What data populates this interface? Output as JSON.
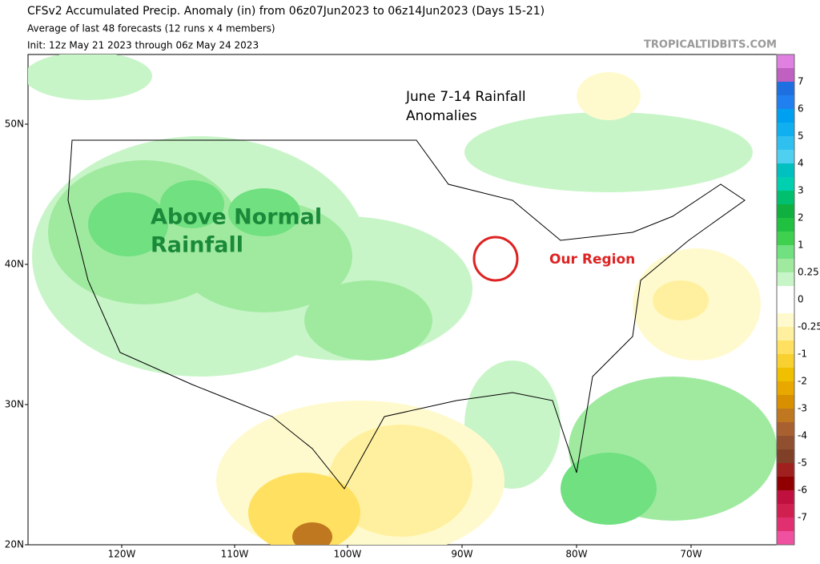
{
  "header": {
    "title": "CFSv2 Accumulated Precip. Anomaly (in) from 06z07Jun2023 to 06z14Jun2023 (Days 15-21)",
    "subtitle": "Average of last 48 forecasts (12 runs x 4 members)",
    "init": "Init: 12z May 21 2023 through 06z May 24 2023",
    "credit": "TROPICALTIDBITS.COM"
  },
  "map": {
    "lat_labels": [
      "50N",
      "40N",
      "30N",
      "20N"
    ],
    "lon_labels": [
      "120W",
      "110W",
      "100W",
      "90W",
      "80W",
      "70W"
    ],
    "annotations": {
      "title_lines": [
        "June 7-14 Rainfall",
        "Anomalies"
      ],
      "above_lines": [
        "Above Normal",
        "Rainfall"
      ],
      "region": "Our Region"
    }
  },
  "colorbar": {
    "labels": [
      "7",
      "6",
      "5",
      "4",
      "3",
      "2",
      "1",
      "0.25",
      "0",
      "-0.25",
      "-1",
      "-2",
      "-3",
      "-4",
      "-5",
      "-6",
      "-7"
    ],
    "colors": [
      "#e080e0",
      "#c060c0",
      "#1e6fe0",
      "#2080f0",
      "#00a0f0",
      "#10b0f0",
      "#30c0f0",
      "#50d0f0",
      "#00c0c0",
      "#00d0b0",
      "#00c070",
      "#10b040",
      "#20c040",
      "#40d050",
      "#70e080",
      "#a0eaa0",
      "#c8f5c8",
      "#ffffff",
      "#ffffff",
      "#fffacd",
      "#fff0a0",
      "#ffe060",
      "#f8d030",
      "#f0c000",
      "#e8a800",
      "#d89000",
      "#c07820",
      "#a86030",
      "#905030",
      "#804028",
      "#a02020",
      "#900000",
      "#c01040",
      "#d02050",
      "#e03070",
      "#f050a0"
    ]
  }
}
